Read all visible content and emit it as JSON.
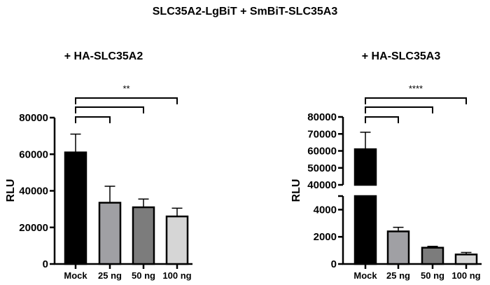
{
  "chart_data": {
    "title": "SLC35A2-LgBiT + SmBiT-SLC35A3",
    "panels": [
      {
        "type": "bar",
        "title": "+ HA-SLC35A2",
        "ylabel": "RLU",
        "categories": [
          "Mock",
          "25 ng",
          "50 ng",
          "100 ng"
        ],
        "values": [
          61000,
          33500,
          31000,
          26000
        ],
        "error_upper": [
          71000,
          42500,
          35500,
          30500
        ],
        "colors": [
          "#000000",
          "#a0a0a4",
          "#7c7c7c",
          "#d6d6d6"
        ],
        "ylim": [
          0,
          80000
        ],
        "yticks": [
          "0",
          "20000",
          "40000",
          "60000",
          "80000"
        ],
        "significance": "**",
        "comparisons": [
          [
            "Mock",
            "25 ng"
          ],
          [
            "Mock",
            "50 ng"
          ],
          [
            "Mock",
            "100 ng"
          ]
        ]
      },
      {
        "type": "bar",
        "title": "+ HA-SLC35A3",
        "ylabel": "RLU",
        "categories": [
          "Mock",
          "25 ng",
          "50 ng",
          "100 ng"
        ],
        "values": [
          61000,
          2400,
          1200,
          700
        ],
        "error_upper": [
          71000,
          2700,
          1300,
          850
        ],
        "colors": [
          "#000000",
          "#a0a0a4",
          "#7c7c7c",
          "#d6d6d6"
        ],
        "axis_break": [
          5000,
          40000
        ],
        "ylim": [
          0,
          80000
        ],
        "yticks_lower": [
          "0",
          "2000",
          "4000"
        ],
        "yticks_upper": [
          "40000",
          "50000",
          "60000",
          "70000",
          "80000"
        ],
        "significance": "****",
        "comparisons": [
          [
            "Mock",
            "25 ng"
          ],
          [
            "Mock",
            "50 ng"
          ],
          [
            "Mock",
            "100 ng"
          ]
        ]
      }
    ]
  }
}
